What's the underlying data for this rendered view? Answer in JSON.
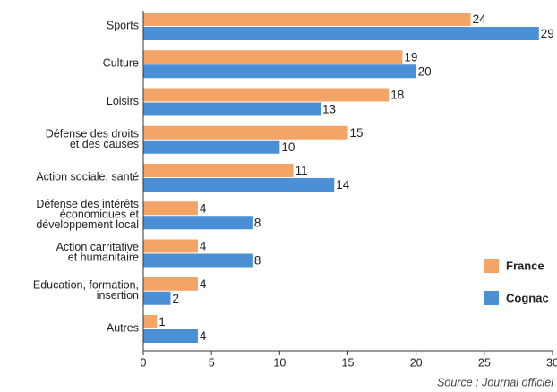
{
  "chart_data": {
    "type": "barh",
    "categories": [
      [
        "Sports"
      ],
      [
        "Culture"
      ],
      [
        "Loisirs"
      ],
      [
        "Défense des droits",
        "et des causes"
      ],
      [
        "Action sociale, santé"
      ],
      [
        "Défense des intérêts",
        "économiques et",
        "développement local"
      ],
      [
        "Action carritative",
        "et humanitaire"
      ],
      [
        "Education, formation,",
        "insertion"
      ],
      [
        "Autres"
      ]
    ],
    "series": [
      {
        "name": "France",
        "color": "#f5a467",
        "values": [
          24,
          19,
          18,
          15,
          11,
          4,
          4,
          4,
          1
        ]
      },
      {
        "name": "Cognac",
        "color": "#4b8fd6",
        "values": [
          29,
          20,
          13,
          10,
          14,
          8,
          8,
          2,
          4
        ]
      }
    ],
    "xlim": [
      0,
      30
    ],
    "xticks": [
      0,
      5,
      10,
      15,
      20,
      25,
      30
    ],
    "legend": "right",
    "source": "Source : Journal officiel"
  }
}
